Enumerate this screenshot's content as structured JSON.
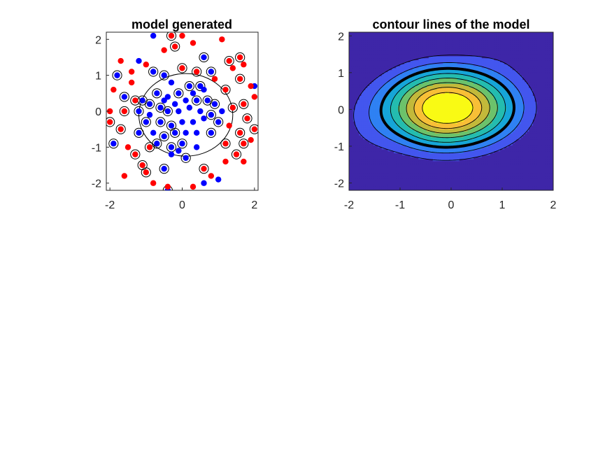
{
  "window": {
    "background": "#ffffff"
  },
  "chart_data": [
    {
      "type": "scatter",
      "title": "model generated",
      "xlabel": "",
      "ylabel": "",
      "xlim": [
        -2.1,
        2.1
      ],
      "ylim": [
        -2.2,
        2.2
      ],
      "x_ticks": [
        -2,
        0,
        2
      ],
      "y_ticks": [
        -2,
        -1,
        0,
        1,
        2
      ],
      "grid": false,
      "legend": "none",
      "decision_boundary": {
        "shape": "ellipse",
        "center": [
          0.1,
          -0.1
        ],
        "rx": 1.3,
        "ry": 1.15,
        "color": "#000000"
      },
      "series": [
        {
          "color": "#0000ff",
          "points": [
            [
              -1.8,
              1.0
            ],
            [
              -0.8,
              2.1
            ],
            [
              -1.2,
              1.4
            ],
            [
              -0.8,
              1.1
            ],
            [
              -0.5,
              1.0
            ],
            [
              -0.3,
              0.8
            ],
            [
              0.2,
              0.7
            ],
            [
              0.5,
              0.7
            ],
            [
              0.6,
              1.5
            ],
            [
              0.8,
              1.1
            ],
            [
              -0.7,
              0.5
            ],
            [
              -0.4,
              0.4
            ],
            [
              -0.1,
              0.5
            ],
            [
              0.3,
              0.5
            ],
            [
              0.6,
              0.6
            ],
            [
              -1.1,
              0.3
            ],
            [
              -0.9,
              0.2
            ],
            [
              -0.5,
              0.3
            ],
            [
              -0.2,
              0.2
            ],
            [
              0.1,
              0.3
            ],
            [
              0.4,
              0.3
            ],
            [
              0.9,
              0.2
            ],
            [
              -1.2,
              0.0
            ],
            [
              -0.9,
              -0.1
            ],
            [
              -0.4,
              0.0
            ],
            [
              -0.1,
              0.0
            ],
            [
              0.2,
              0.1
            ],
            [
              0.5,
              0.0
            ],
            [
              0.8,
              -0.1
            ],
            [
              1.1,
              0.0
            ],
            [
              -1.0,
              -0.3
            ],
            [
              -0.6,
              -0.3
            ],
            [
              -0.3,
              -0.4
            ],
            [
              0.0,
              -0.3
            ],
            [
              0.3,
              -0.3
            ],
            [
              0.6,
              -0.2
            ],
            [
              1.0,
              -0.3
            ],
            [
              -1.2,
              -0.6
            ],
            [
              -0.8,
              -0.6
            ],
            [
              -0.5,
              -0.7
            ],
            [
              -0.2,
              -0.6
            ],
            [
              0.1,
              -0.6
            ],
            [
              0.4,
              -0.6
            ],
            [
              0.8,
              -0.6
            ],
            [
              -0.7,
              -0.9
            ],
            [
              -0.3,
              -1.0
            ],
            [
              0.0,
              -0.9
            ],
            [
              0.4,
              -1.0
            ],
            [
              -1.9,
              -0.9
            ],
            [
              -0.5,
              -1.6
            ],
            [
              -0.3,
              -1.2
            ],
            [
              0.1,
              -1.3
            ],
            [
              -0.4,
              -2.2
            ],
            [
              0.6,
              -2.0
            ],
            [
              1.0,
              -1.9
            ],
            [
              2.0,
              0.7
            ],
            [
              -1.6,
              0.4
            ],
            [
              -0.6,
              0.1
            ],
            [
              0.7,
              0.3
            ],
            [
              -0.1,
              -1.1
            ]
          ]
        },
        {
          "color": "#ff0000",
          "points": [
            [
              -0.3,
              2.1
            ],
            [
              0.0,
              2.1
            ],
            [
              1.1,
              2.0
            ],
            [
              -0.5,
              1.7
            ],
            [
              -0.2,
              1.8
            ],
            [
              0.3,
              1.9
            ],
            [
              -1.4,
              1.1
            ],
            [
              -1.0,
              1.3
            ],
            [
              0.0,
              1.2
            ],
            [
              0.4,
              1.1
            ],
            [
              1.4,
              1.2
            ],
            [
              1.7,
              1.3
            ],
            [
              1.6,
              1.5
            ],
            [
              -1.9,
              0.6
            ],
            [
              -1.4,
              0.8
            ],
            [
              1.2,
              0.6
            ],
            [
              1.6,
              0.9
            ],
            [
              1.9,
              0.7
            ],
            [
              -2.0,
              0.0
            ],
            [
              -1.6,
              0.0
            ],
            [
              -1.3,
              0.3
            ],
            [
              1.4,
              0.1
            ],
            [
              1.7,
              0.2
            ],
            [
              2.0,
              0.4
            ],
            [
              -2.0,
              -0.3
            ],
            [
              -1.7,
              -0.5
            ],
            [
              1.3,
              -0.4
            ],
            [
              1.6,
              -0.6
            ],
            [
              2.0,
              -0.5
            ],
            [
              -1.5,
              -1.0
            ],
            [
              -1.3,
              -1.2
            ],
            [
              -0.9,
              -1.0
            ],
            [
              1.2,
              -0.9
            ],
            [
              1.7,
              -0.9
            ],
            [
              1.9,
              -0.8
            ],
            [
              -1.6,
              -1.8
            ],
            [
              -1.0,
              -1.7
            ],
            [
              -0.8,
              -2.0
            ],
            [
              -0.4,
              -2.1
            ],
            [
              0.3,
              -2.1
            ],
            [
              0.6,
              -1.6
            ],
            [
              1.2,
              -1.4
            ],
            [
              1.7,
              -1.4
            ],
            [
              0.8,
              -1.8
            ],
            [
              -1.1,
              -1.5
            ],
            [
              1.8,
              -0.2
            ],
            [
              1.5,
              -1.2
            ],
            [
              0.9,
              0.9
            ],
            [
              1.3,
              1.4
            ],
            [
              -1.7,
              1.4
            ]
          ]
        }
      ],
      "support_vector_color": "#000000"
    },
    {
      "type": "contour",
      "title": "contour lines of the model",
      "xlabel": "",
      "ylabel": "",
      "xlim": [
        -2,
        2
      ],
      "ylim": [
        -2.2,
        2.1
      ],
      "x_ticks": [
        -2,
        -1,
        0,
        1,
        2
      ],
      "y_ticks": [
        -2,
        -1,
        0,
        1,
        2
      ],
      "grid": false,
      "legend": "none",
      "colormap": "parula",
      "colors": [
        "#3e26a8",
        "#4356ee",
        "#2f81f3",
        "#16a5d8",
        "#24bcaf",
        "#6cc26b",
        "#c3b93a",
        "#f8bf37",
        "#f9fa14"
      ],
      "levels": [
        -1.2,
        -0.6,
        0.0,
        0.6,
        1.2,
        1.8,
        2.4,
        3.0
      ],
      "highlight_level": 0.0,
      "field": {
        "baseline": -2.2,
        "bumps": [
          {
            "x": 0.0,
            "y": 0.05,
            "sx": 0.9,
            "sy": 0.75,
            "a": 5.6
          },
          {
            "x": -0.4,
            "y": -0.05,
            "sx": 0.55,
            "sy": 0.75,
            "a": 0.6
          },
          {
            "x": 1.4,
            "y": 1.9,
            "sx": 0.6,
            "sy": 0.5,
            "a": 0.6
          },
          {
            "x": -1.7,
            "y": -0.5,
            "sx": 0.5,
            "sy": 0.8,
            "a": 0.5
          }
        ]
      }
    }
  ]
}
